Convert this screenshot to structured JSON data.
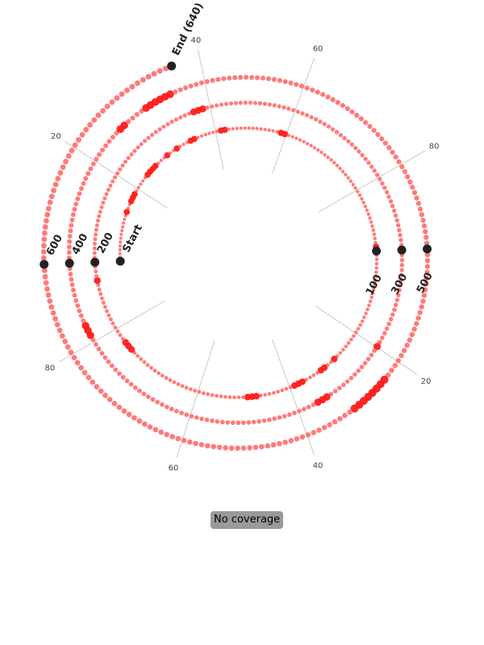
{
  "chart_data": {
    "type": "scatter",
    "subtype": "circular-track",
    "total_positions": 640,
    "positions_per_turn": 100,
    "angular_ticks": [
      "20",
      "40",
      "60",
      "80",
      "20",
      "40",
      "60",
      "80"
    ],
    "markers": [
      {
        "label": "Start",
        "position": 0
      },
      {
        "label": "100",
        "position": 100
      },
      {
        "label": "200",
        "position": 200
      },
      {
        "label": "300",
        "position": 300
      },
      {
        "label": "400",
        "position": 400
      },
      {
        "label": "500",
        "position": 500
      },
      {
        "label": "600",
        "position": 600
      },
      {
        "label": "End (640)",
        "position": 640
      }
    ],
    "highlighted_positions": [
      13,
      16,
      17,
      18,
      24,
      25,
      26,
      27,
      31,
      34,
      38,
      39,
      46,
      47,
      61,
      62,
      99,
      128,
      131,
      132,
      137,
      138,
      139,
      148,
      149,
      150,
      179,
      180,
      181,
      196,
      241,
      242,
      243,
      320,
      334,
      335,
      336,
      386,
      387,
      388,
      427,
      428,
      433,
      434,
      435,
      436,
      437,
      438,
      524,
      525,
      526,
      527,
      528,
      529,
      530,
      531
    ],
    "colors": {
      "point": "#ff6b6b",
      "highlight": "#ff1a1a",
      "marker": "#222222",
      "grid": "#c8c8c8"
    },
    "legend_placement": "bottom-center"
  },
  "badge": {
    "text": "No coverage"
  }
}
